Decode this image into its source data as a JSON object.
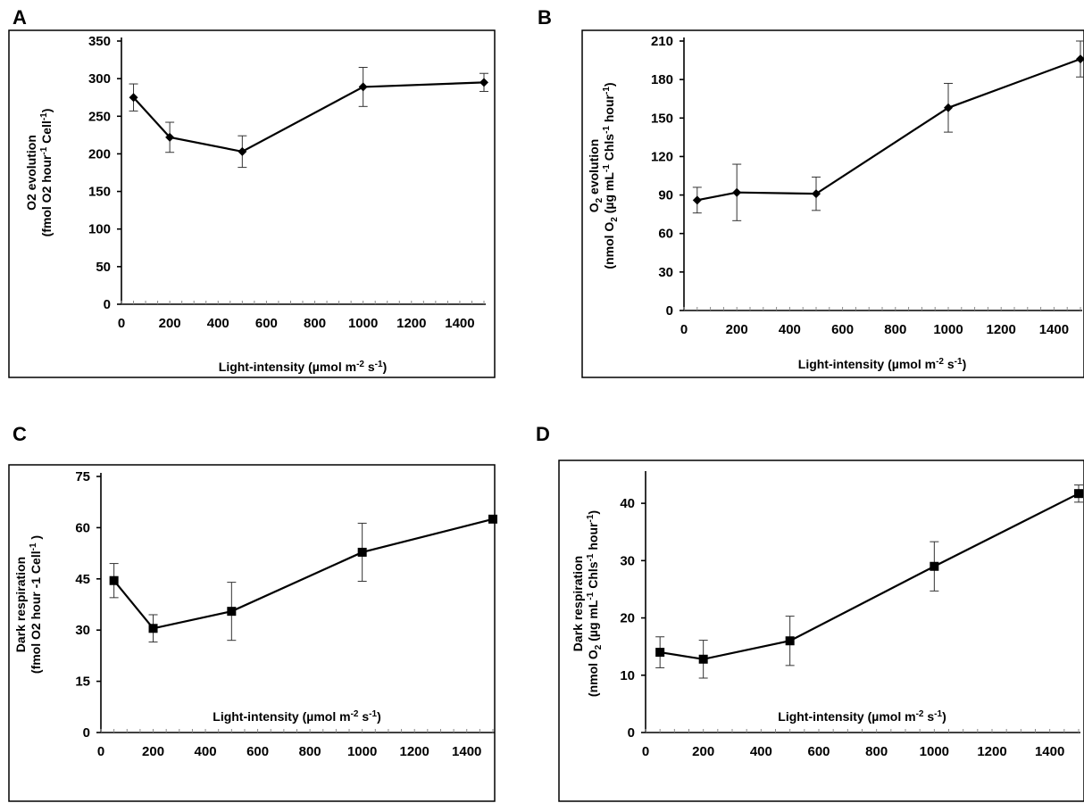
{
  "chart_data": [
    {
      "panel": "A",
      "type": "line",
      "marker": "diamond",
      "x": [
        50,
        200,
        500,
        1000,
        1500
      ],
      "y": [
        275,
        222,
        203,
        289,
        295
      ],
      "err": [
        18,
        20,
        21,
        26,
        12
      ],
      "xlim": [
        0,
        1500
      ],
      "ylim": [
        0,
        350
      ],
      "xticks": [
        "0",
        "200",
        "400",
        "600",
        "800",
        "1000",
        "1200",
        "1400"
      ],
      "yticks": [
        "0",
        "50",
        "100",
        "150",
        "200",
        "250",
        "300",
        "350"
      ],
      "xlabel": "Light-intensity (µmol m-2 s-1)",
      "ylabel_line1": "O2 evolution",
      "ylabel_line2": "(fmol O2 hour-1  Cell-1)"
    },
    {
      "panel": "B",
      "type": "line",
      "marker": "diamond",
      "x": [
        50,
        200,
        500,
        1000,
        1500
      ],
      "y": [
        86,
        92,
        91,
        158,
        196
      ],
      "err": [
        10,
        22,
        13,
        19,
        14
      ],
      "xlim": [
        0,
        1500
      ],
      "ylim": [
        0,
        210
      ],
      "xticks": [
        "0",
        "200",
        "400",
        "600",
        "800",
        "1000",
        "1200",
        "1400"
      ],
      "yticks": [
        "0",
        "30",
        "60",
        "90",
        "120",
        "150",
        "180",
        "210"
      ],
      "xlabel": "Light-intensity (µmol m-2 s-1)",
      "ylabel_line1": "O2 evolution",
      "ylabel_line2": "(nmol O2 (µg mL-1 Chls-1 hour-1)"
    },
    {
      "panel": "C",
      "type": "line",
      "marker": "square",
      "x": [
        50,
        200,
        500,
        1000,
        1500
      ],
      "y": [
        44.5,
        30.5,
        35.5,
        52.8,
        62.5
      ],
      "err": [
        5,
        4,
        8.5,
        8.5,
        0.5
      ],
      "xlim": [
        0,
        1500
      ],
      "ylim": [
        0,
        75
      ],
      "xticks": [
        "0",
        "200",
        "400",
        "600",
        "800",
        "1000",
        "1200",
        "1400"
      ],
      "yticks": [
        "0",
        "15",
        "30",
        "45",
        "60",
        "75"
      ],
      "xlabel": "Light-intensity (µmol m-2 s-1)",
      "ylabel_line1": "Dark respiration",
      "ylabel_line2": "(fmol O2 hour -1  Cell-1 )"
    },
    {
      "panel": "D",
      "type": "line",
      "marker": "square",
      "x": [
        50,
        200,
        500,
        1000,
        1500
      ],
      "y": [
        14,
        12.8,
        16,
        29,
        41.7
      ],
      "err": [
        2.7,
        3.3,
        4.3,
        4.3,
        1.5
      ],
      "xlim": [
        0,
        1500
      ],
      "ylim": [
        0,
        45
      ],
      "xticks": [
        "0",
        "200",
        "400",
        "600",
        "800",
        "1000",
        "1200",
        "1400"
      ],
      "yticks": [
        "0",
        "10",
        "20",
        "30",
        "40"
      ],
      "xlabel": "Light-intensity (µmol m-2 s-1)",
      "ylabel_line1": "Dark respiration",
      "ylabel_line2": "(nmol O2 (µg mL-1 Chls-1 hour-1)"
    }
  ]
}
